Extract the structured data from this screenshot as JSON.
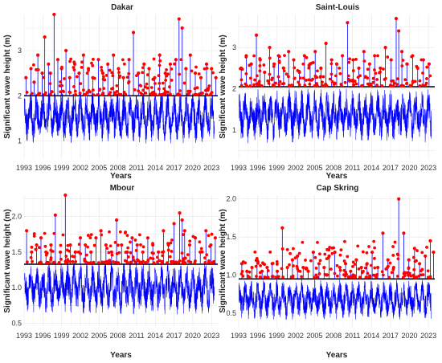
{
  "chart_data": [
    {
      "type": "line",
      "title": "Dakar",
      "xlabel": "Years",
      "ylabel": "Significant wave height (m)",
      "xlim": [
        1993,
        2024
      ],
      "ylim": [
        0.6,
        3.8
      ],
      "x_ticks": [
        "1993",
        "1996",
        "1999",
        "2002",
        "2005",
        "2008",
        "2011",
        "2014",
        "2017",
        "2020",
        "2023"
      ],
      "y_ticks": [
        1,
        2,
        3
      ],
      "threshold": 2.0,
      "series": [
        {
          "name": "",
          "color": "#0000ff",
          "description": "daily series"
        },
        {
          "name": "",
          "color": "#ff0000",
          "description": "peaks over threshold"
        }
      ],
      "peaks": {
        "x": [
          1993.3,
          1994.1,
          1994.6,
          1995.2,
          1995.9,
          1996.3,
          1996.9,
          1997.2,
          1997.8,
          1998.4,
          1999.0,
          1999.7,
          2000.3,
          2001.1,
          2001.8,
          2002.5,
          2003.3,
          2004.0,
          2004.9,
          2005.6,
          2006.4,
          2007.3,
          2008.1,
          2008.9,
          2009.8,
          2010.5,
          2011.3,
          2012.2,
          2013.0,
          2013.9,
          2014.7,
          2015.6,
          2016.4,
          2017.3,
          2017.8,
          2018.3,
          2018.9,
          2019.6,
          2020.4,
          2021.3,
          2022.2,
          2023.0,
          2023.7
        ],
        "y": [
          2.4,
          2.6,
          2.3,
          2.9,
          2.5,
          3.3,
          2.7,
          2.5,
          3.8,
          2.8,
          2.6,
          3.0,
          2.4,
          2.7,
          2.5,
          2.9,
          2.6,
          2.4,
          2.8,
          2.5,
          2.7,
          2.9,
          2.6,
          2.4,
          2.8,
          3.4,
          2.5,
          2.7,
          2.6,
          2.4,
          2.9,
          2.5,
          2.7,
          2.8,
          3.7,
          3.5,
          2.6,
          2.9,
          2.5,
          2.4,
          2.7,
          2.6,
          2.4
        ]
      }
    },
    {
      "type": "line",
      "title": "Saint-Louis",
      "xlabel": "Years",
      "ylabel": "Significant wave height (m)",
      "xlim": [
        1993,
        2024
      ],
      "ylim": [
        0.3,
        3.8
      ],
      "x_ticks": [
        "1993",
        "1996",
        "1999",
        "2002",
        "2005",
        "2008",
        "2011",
        "2014",
        "2017",
        "2020",
        "2023"
      ],
      "y_ticks": [
        1,
        2,
        3
      ],
      "threshold": 2.05,
      "series": [
        {
          "name": "",
          "color": "#0000ff",
          "description": "daily series"
        },
        {
          "name": "",
          "color": "#ff0000",
          "description": "peaks over threshold"
        }
      ],
      "peaks": {
        "x": [
          1993.4,
          1994.2,
          1995.0,
          1995.8,
          1996.4,
          1997.1,
          1997.9,
          1998.6,
          1999.3,
          2000.1,
          2000.9,
          2001.7,
          2002.6,
          2003.4,
          2004.3,
          2005.1,
          2006.0,
          2006.8,
          2007.7,
          2008.5,
          2009.4,
          2010.2,
          2011.1,
          2012.0,
          2012.8,
          2013.7,
          2014.5,
          2015.4,
          2016.2,
          2017.1,
          2017.9,
          2018.3,
          2018.8,
          2019.6,
          2020.5,
          2021.3,
          2022.2,
          2023.1
        ],
        "y": [
          2.5,
          2.8,
          2.6,
          3.3,
          2.7,
          2.4,
          3.0,
          2.6,
          2.8,
          2.5,
          2.9,
          2.7,
          2.4,
          2.8,
          2.6,
          2.9,
          2.5,
          3.1,
          2.7,
          2.6,
          2.8,
          3.6,
          2.7,
          2.5,
          2.9,
          2.6,
          2.8,
          2.5,
          3.0,
          2.7,
          3.7,
          3.4,
          2.9,
          2.6,
          2.8,
          2.5,
          2.7,
          2.6
        ]
      }
    },
    {
      "type": "line",
      "title": "Mbour",
      "xlabel": "Years",
      "ylabel": "Significant wave height (m)",
      "xlim": [
        1993,
        2024
      ],
      "ylim": [
        0.45,
        2.3
      ],
      "x_ticks": [
        "1993",
        "1996",
        "1999",
        "2002",
        "2005",
        "2008",
        "2011",
        "2014",
        "2017",
        "2020",
        "2023"
      ],
      "y_ticks": [
        0.5,
        1.0,
        1.5,
        2.0
      ],
      "threshold": 1.33,
      "series": [
        {
          "name": "",
          "color": "#0000ff",
          "description": "daily series"
        },
        {
          "name": "",
          "color": "#ff0000",
          "description": "peaks over threshold"
        }
      ],
      "peaks": {
        "x": [
          1993.4,
          1994.2,
          1995.0,
          1995.7,
          1996.5,
          1997.3,
          1998.0,
          1998.8,
          1999.6,
          2000.4,
          2001.2,
          2002.0,
          2002.8,
          2003.7,
          2004.5,
          2005.3,
          2006.1,
          2007.0,
          2007.8,
          2008.6,
          2009.5,
          2010.3,
          2011.1,
          2012.0,
          2012.8,
          2013.6,
          2014.5,
          2015.3,
          2016.1,
          2017.0,
          2017.9,
          2018.3,
          2018.7,
          2019.5,
          2020.4,
          2021.2,
          2022.1,
          2022.9,
          2023.6
        ],
        "y": [
          1.8,
          1.5,
          1.6,
          1.7,
          1.5,
          1.6,
          2.02,
          1.5,
          2.3,
          1.6,
          1.5,
          1.7,
          1.6,
          1.5,
          1.7,
          1.8,
          1.6,
          1.5,
          1.95,
          1.6,
          1.5,
          1.7,
          1.6,
          1.5,
          1.7,
          1.6,
          1.5,
          1.8,
          1.6,
          1.9,
          2.05,
          1.95,
          1.8,
          1.6,
          1.7,
          1.5,
          1.8,
          1.6,
          1.7
        ]
      }
    },
    {
      "type": "line",
      "title": "Cap Skring",
      "xlabel": "Years",
      "ylabel": "Significant wave height (m)",
      "xlim": [
        1993,
        2024
      ],
      "ylim": [
        0.32,
        2.05
      ],
      "x_ticks": [
        "1993",
        "1996",
        "1999",
        "2002",
        "2005",
        "2008",
        "2011",
        "2014",
        "2017",
        "2020",
        "2023"
      ],
      "y_ticks": [
        0.5,
        1.0,
        1.5,
        2.0
      ],
      "threshold": 0.95,
      "series": [
        {
          "name": "",
          "color": "#0000ff",
          "description": "daily series"
        },
        {
          "name": "",
          "color": "#ff0000",
          "description": "peaks over threshold"
        }
      ],
      "peaks": {
        "x": [
          1993.5,
          1994.3,
          1995.1,
          1995.9,
          1996.7,
          1997.5,
          1998.3,
          1999.1,
          1999.9,
          2000.7,
          2001.5,
          2002.3,
          2003.2,
          2004.0,
          2004.8,
          2005.7,
          2006.5,
          2007.3,
          2008.2,
          2009.0,
          2009.9,
          2010.7,
          2011.6,
          2012.4,
          2013.3,
          2014.1,
          2015.0,
          2015.8,
          2016.6,
          2017.5,
          2018.3,
          2019.1,
          2019.9,
          2020.8,
          2021.6,
          2022.5,
          2023.3,
          2023.8
        ],
        "y": [
          1.15,
          1.05,
          1.1,
          1.2,
          1.05,
          1.1,
          1.15,
          1.05,
          1.62,
          1.1,
          1.2,
          1.25,
          1.1,
          1.05,
          1.3,
          1.15,
          1.1,
          1.25,
          1.3,
          1.1,
          1.15,
          1.05,
          1.2,
          1.1,
          1.15,
          1.3,
          1.1,
          1.55,
          1.2,
          1.1,
          2.0,
          1.55,
          1.2,
          1.35,
          1.15,
          1.25,
          1.45,
          1.3
        ]
      }
    }
  ]
}
